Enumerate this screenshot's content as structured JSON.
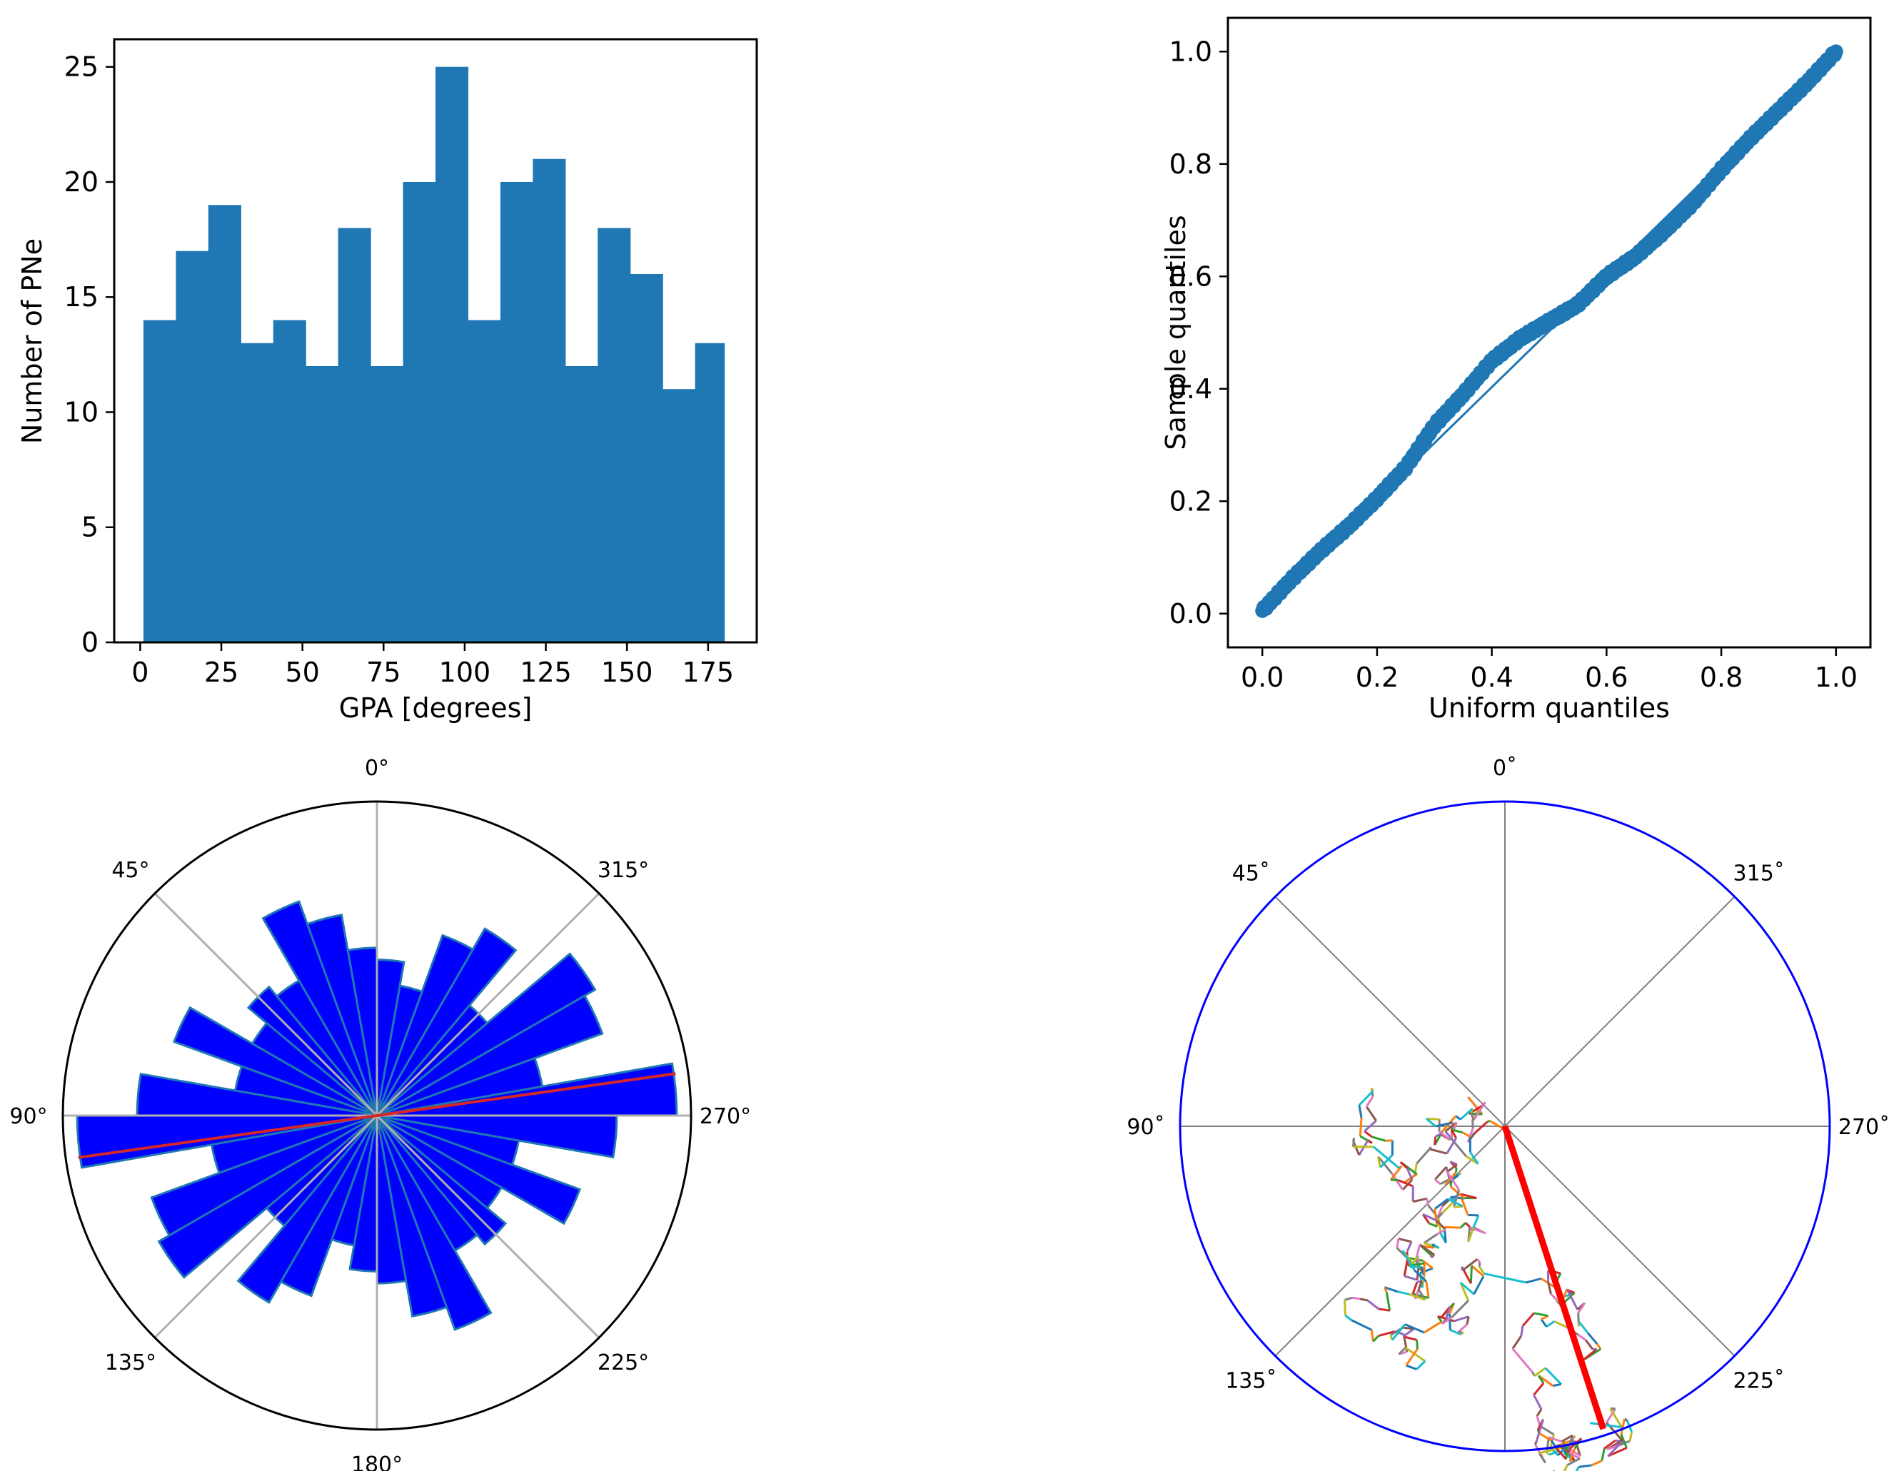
{
  "chart_data": [
    {
      "type": "bar",
      "title": "",
      "xlabel": "GPA [degrees]",
      "ylabel": "Number of PNe",
      "bin_edges": [
        1,
        11,
        21,
        31,
        41,
        51,
        61,
        71,
        81,
        91,
        101,
        111,
        121,
        131,
        141,
        151,
        161,
        171,
        180
      ],
      "values": [
        14,
        17,
        19,
        13,
        14,
        12,
        18,
        12,
        20,
        25,
        14,
        20,
        21,
        12,
        18,
        16,
        11,
        13
      ],
      "xlim": [
        -8,
        190
      ],
      "ylim": [
        0,
        26.2
      ],
      "xticks": [
        0,
        25,
        50,
        75,
        100,
        125,
        150,
        175
      ],
      "xtick_labels": [
        "0",
        "25",
        "50",
        "75",
        "100",
        "125",
        "150",
        "175"
      ],
      "yticks": [
        0,
        5,
        10,
        15,
        20,
        25
      ],
      "ytick_labels": [
        "0",
        "5",
        "10",
        "15",
        "20",
        "25"
      ],
      "color": "#1f77b4"
    },
    {
      "type": "scatter",
      "title": "",
      "xlabel": "Uniform quantiles",
      "ylabel": "Sample quantiles",
      "xlim": [
        -0.06,
        1.06
      ],
      "ylim": [
        -0.06,
        1.06
      ],
      "xticks": [
        0.0,
        0.2,
        0.4,
        0.6,
        0.8,
        1.0
      ],
      "xtick_labels": [
        "0.0",
        "0.2",
        "0.4",
        "0.6",
        "0.8",
        "1.0"
      ],
      "yticks": [
        0.0,
        0.2,
        0.4,
        0.6,
        0.8,
        1.0
      ],
      "ytick_labels": [
        "0.0",
        "0.2",
        "0.4",
        "0.6",
        "0.8",
        "1.0"
      ],
      "curve": [
        [
          0.0,
          0.005
        ],
        [
          0.05,
          0.06
        ],
        [
          0.1,
          0.11
        ],
        [
          0.15,
          0.155
        ],
        [
          0.2,
          0.205
        ],
        [
          0.25,
          0.26
        ],
        [
          0.3,
          0.335
        ],
        [
          0.35,
          0.39
        ],
        [
          0.4,
          0.45
        ],
        [
          0.45,
          0.49
        ],
        [
          0.5,
          0.52
        ],
        [
          0.55,
          0.55
        ],
        [
          0.6,
          0.6
        ],
        [
          0.65,
          0.635
        ],
        [
          0.7,
          0.68
        ],
        [
          0.75,
          0.73
        ],
        [
          0.8,
          0.79
        ],
        [
          0.85,
          0.845
        ],
        [
          0.9,
          0.895
        ],
        [
          0.95,
          0.945
        ],
        [
          1.0,
          1.0
        ]
      ],
      "color": "#1f77b4"
    },
    {
      "type": "polar-bar",
      "title": "",
      "angle_labels": [
        "0°",
        "45°",
        "90°",
        "135°",
        "180°",
        "225°",
        "270°",
        "315°"
      ],
      "bin_width_deg": 10,
      "values": [
        14,
        17,
        19,
        13,
        14,
        12,
        18,
        12,
        20,
        25,
        14,
        20,
        21,
        12,
        18,
        16,
        11,
        13
      ],
      "rmax": 26.2,
      "mean_direction_deg": 98,
      "bar_color": "#0000ff",
      "edge_color": "#1f77b4",
      "line_color": "#d62728"
    },
    {
      "type": "polar-walk",
      "title": "",
      "angle_labels": [
        "0˚",
        "45˚",
        "90˚",
        "135˚",
        "180˚",
        "225˚",
        "270˚",
        "315˚"
      ],
      "circle_color": "#0000ff",
      "resultant_color": "#ff0000",
      "resultant_angle_deg": 198,
      "resultant_length": 0.98,
      "walk_seed": 7
    }
  ]
}
